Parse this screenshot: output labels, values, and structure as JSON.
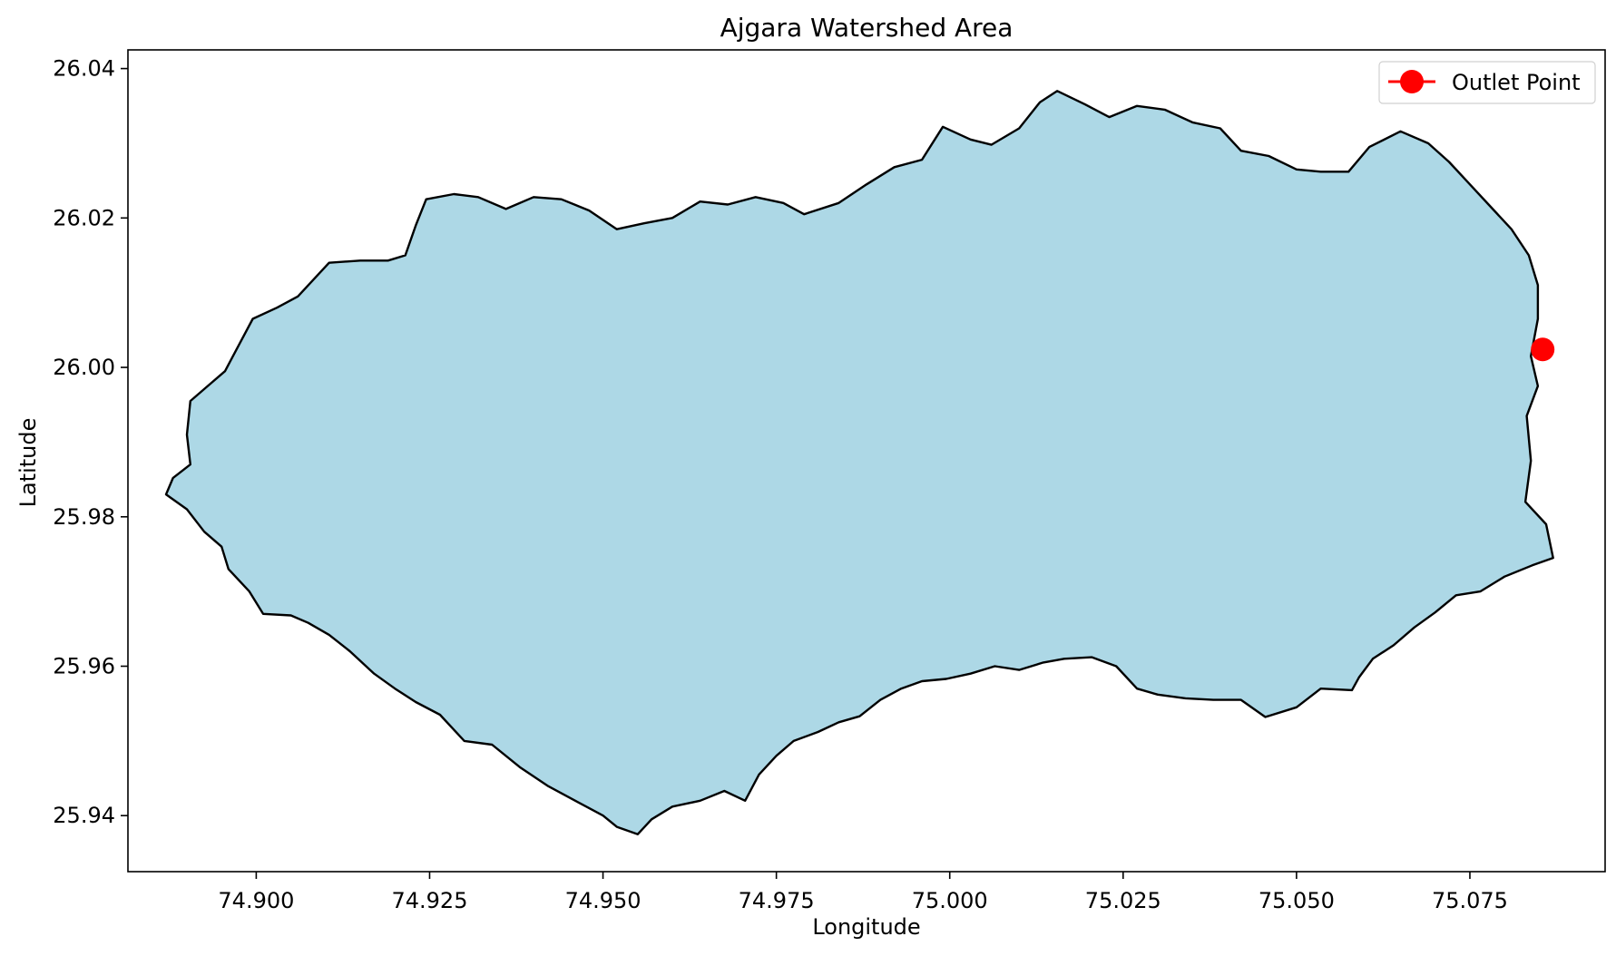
{
  "chart_data": {
    "type": "map",
    "title": "Ajgara Watershed Area",
    "xlabel": "Longitude",
    "ylabel": "Latitude",
    "xlim": [
      74.8815,
      75.0945
    ],
    "ylim": [
      25.9325,
      26.0425
    ],
    "xticks": [
      74.9,
      74.925,
      74.95,
      74.975,
      75.0,
      75.025,
      75.05,
      75.075
    ],
    "xtick_labels": [
      "74.900",
      "74.925",
      "74.950",
      "74.975",
      "75.000",
      "75.025",
      "75.050",
      "75.075"
    ],
    "yticks": [
      25.94,
      25.96,
      25.98,
      26.0,
      26.02,
      26.04
    ],
    "ytick_labels": [
      "25.94",
      "25.96",
      "25.98",
      "26.00",
      "26.02",
      "26.04"
    ],
    "grid": false,
    "legend": {
      "position": "top-right",
      "entries": [
        "Outlet Point"
      ]
    },
    "series": [
      {
        "name": "",
        "kind": "polygon",
        "fill": "#add8e6",
        "edge": "#000000",
        "points": [
          [
            74.888,
            25.9852
          ],
          [
            74.8905,
            25.987
          ],
          [
            74.89,
            25.991
          ],
          [
            74.8905,
            25.9955
          ],
          [
            74.893,
            25.9975
          ],
          [
            74.8955,
            25.9995
          ],
          [
            74.8975,
            26.003
          ],
          [
            74.8995,
            26.0065
          ],
          [
            74.903,
            26.008
          ],
          [
            74.906,
            26.0095
          ],
          [
            74.9085,
            26.012
          ],
          [
            74.9105,
            26.014
          ],
          [
            74.915,
            26.0143
          ],
          [
            74.919,
            26.0143
          ],
          [
            74.9215,
            26.015
          ],
          [
            74.923,
            26.019
          ],
          [
            74.9245,
            26.0225
          ],
          [
            74.9285,
            26.0232
          ],
          [
            74.932,
            26.0228
          ],
          [
            74.936,
            26.0212
          ],
          [
            74.94,
            26.0228
          ],
          [
            74.944,
            26.0225
          ],
          [
            74.948,
            26.021
          ],
          [
            74.952,
            26.0185
          ],
          [
            74.956,
            26.0193
          ],
          [
            74.96,
            26.02
          ],
          [
            74.964,
            26.0222
          ],
          [
            74.968,
            26.0218
          ],
          [
            74.972,
            26.0228
          ],
          [
            74.976,
            26.022
          ],
          [
            74.979,
            26.0205
          ],
          [
            74.984,
            26.022
          ],
          [
            74.988,
            26.0245
          ],
          [
            74.992,
            26.0268
          ],
          [
            74.996,
            26.0278
          ],
          [
            74.999,
            26.0322
          ],
          [
            75.003,
            26.0305
          ],
          [
            75.006,
            26.0298
          ],
          [
            75.01,
            26.032
          ],
          [
            75.013,
            26.0355
          ],
          [
            75.0155,
            26.037
          ],
          [
            75.0195,
            26.0352
          ],
          [
            75.023,
            26.0335
          ],
          [
            75.027,
            26.035
          ],
          [
            75.031,
            26.0345
          ],
          [
            75.035,
            26.0328
          ],
          [
            75.039,
            26.032
          ],
          [
            75.042,
            26.029
          ],
          [
            75.046,
            26.0283
          ],
          [
            75.05,
            26.0265
          ],
          [
            75.0535,
            26.0262
          ],
          [
            75.0575,
            26.0262
          ],
          [
            75.0605,
            26.0295
          ],
          [
            75.065,
            26.0316
          ],
          [
            75.069,
            26.03
          ],
          [
            75.072,
            26.0275
          ],
          [
            75.075,
            26.0245
          ],
          [
            75.078,
            26.0215
          ],
          [
            75.081,
            26.0185
          ],
          [
            75.0835,
            26.015
          ],
          [
            75.0848,
            26.011
          ],
          [
            75.0848,
            26.0065
          ],
          [
            75.0838,
            26.0015
          ],
          [
            75.0848,
            25.9975
          ],
          [
            75.0832,
            25.9935
          ],
          [
            75.0838,
            25.9875
          ],
          [
            75.083,
            25.982
          ],
          [
            75.086,
            25.979
          ],
          [
            75.087,
            25.9745
          ],
          [
            75.084,
            25.9735
          ],
          [
            75.08,
            25.972
          ],
          [
            75.0765,
            25.97
          ],
          [
            75.073,
            25.9695
          ],
          [
            75.07,
            25.9672
          ],
          [
            75.067,
            25.9652
          ],
          [
            75.064,
            25.9628
          ],
          [
            75.061,
            25.961
          ],
          [
            75.059,
            25.9585
          ],
          [
            75.058,
            25.9568
          ],
          [
            75.0535,
            25.957
          ],
          [
            75.05,
            25.9545
          ],
          [
            75.0455,
            25.9532
          ],
          [
            75.042,
            25.9555
          ],
          [
            75.038,
            25.9555
          ],
          [
            75.034,
            25.9557
          ],
          [
            75.03,
            25.9562
          ],
          [
            75.027,
            25.957
          ],
          [
            75.024,
            25.96
          ],
          [
            75.0205,
            25.9612
          ],
          [
            75.0165,
            25.961
          ],
          [
            75.0135,
            25.9605
          ],
          [
            75.01,
            25.9595
          ],
          [
            75.0065,
            25.96
          ],
          [
            75.003,
            25.959
          ],
          [
            74.9995,
            25.9583
          ],
          [
            74.996,
            25.958
          ],
          [
            74.993,
            25.957
          ],
          [
            74.99,
            25.9555
          ],
          [
            74.987,
            25.9533
          ],
          [
            74.984,
            25.9525
          ],
          [
            74.981,
            25.9512
          ],
          [
            74.9775,
            25.95
          ],
          [
            74.975,
            25.948
          ],
          [
            74.9725,
            25.9455
          ],
          [
            74.9705,
            25.942
          ],
          [
            74.9675,
            25.9433
          ],
          [
            74.964,
            25.942
          ],
          [
            74.96,
            25.9412
          ],
          [
            74.957,
            25.9395
          ],
          [
            74.955,
            25.9375
          ],
          [
            74.952,
            25.9385
          ],
          [
            74.95,
            25.94
          ],
          [
            74.946,
            25.942
          ],
          [
            74.942,
            25.944
          ],
          [
            74.938,
            25.9465
          ],
          [
            74.934,
            25.9495
          ],
          [
            74.93,
            25.95
          ],
          [
            74.9265,
            25.9535
          ],
          [
            74.923,
            25.9552
          ],
          [
            74.92,
            25.957
          ],
          [
            74.917,
            25.959
          ],
          [
            74.9135,
            25.962
          ],
          [
            74.9105,
            25.9642
          ],
          [
            74.9075,
            25.9658
          ],
          [
            74.905,
            25.9668
          ],
          [
            74.901,
            25.967
          ],
          [
            74.899,
            25.97
          ],
          [
            74.896,
            25.973
          ],
          [
            74.895,
            25.976
          ],
          [
            74.8925,
            25.978
          ],
          [
            74.89,
            25.981
          ],
          [
            74.887,
            25.983
          ],
          [
            74.888,
            25.9852
          ]
        ]
      },
      {
        "name": "Outlet Point",
        "kind": "point",
        "color": "#ff0000",
        "points": [
          [
            75.0855,
            26.0024
          ]
        ]
      }
    ]
  }
}
